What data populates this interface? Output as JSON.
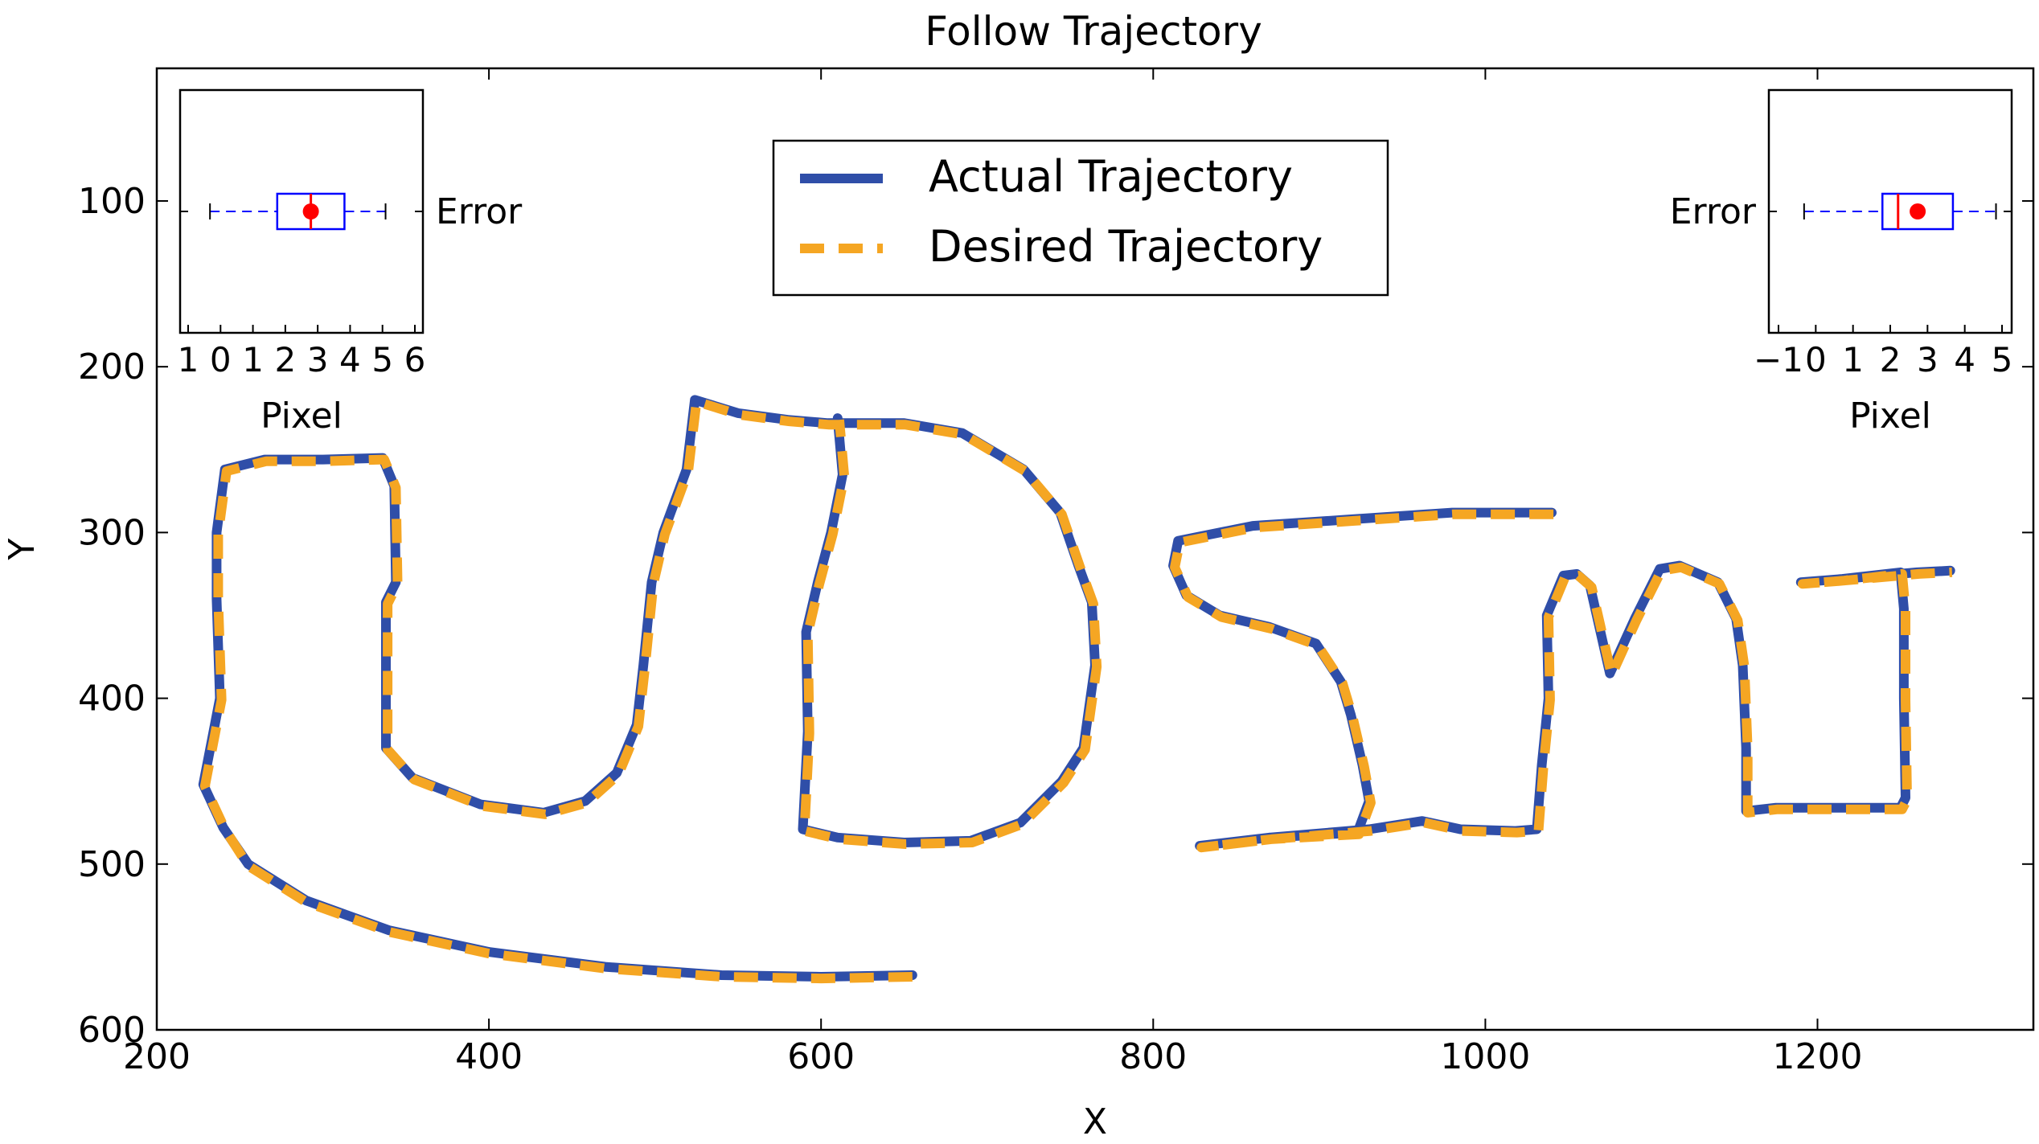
{
  "chart_data": {
    "type": "line",
    "title": "Follow Trajectory",
    "xlabel": "X",
    "ylabel": "Y",
    "xlim": [
      200,
      1330
    ],
    "ylim": [
      600,
      20
    ],
    "y_inverted": true,
    "xticks": [
      "200",
      "400",
      "600",
      "800",
      "1000",
      "1200"
    ],
    "yticks": [
      "100",
      "200",
      "300",
      "400",
      "500",
      "600"
    ],
    "legend": {
      "placement": "top-center",
      "entries": [
        "Actual Trajectory",
        "Desired Trajectory"
      ]
    },
    "series": [
      {
        "name": "Actual Trajectory",
        "color": "#2f4ea8",
        "style": "solid",
        "strokes": [
          [
            [
              655,
              567
            ],
            [
              600,
              568
            ],
            [
              540,
              567
            ],
            [
              470,
              562
            ],
            [
              400,
              553
            ],
            [
              340,
              540
            ],
            [
              290,
              522
            ],
            [
              255,
              500
            ],
            [
              240,
              478
            ],
            [
              228,
              452
            ],
            [
              238,
              400
            ],
            [
              236,
              340
            ],
            [
              236,
              300
            ],
            [
              241,
              262
            ],
            [
              265,
              256
            ],
            [
              300,
              256
            ],
            [
              336,
              255
            ],
            [
              343,
              272
            ],
            [
              344,
              330
            ],
            [
              338,
              342
            ],
            [
              338,
              430
            ],
            [
              354,
              448
            ],
            [
              395,
              464
            ],
            [
              433,
              469
            ],
            [
              458,
              462
            ],
            [
              477,
              445
            ],
            [
              489,
              416
            ],
            [
              493,
              380
            ],
            [
              498,
              330
            ],
            [
              505,
              300
            ],
            [
              519,
              262
            ],
            [
              524,
              220
            ],
            [
              550,
              228
            ],
            [
              580,
              232
            ],
            [
              604,
              234
            ],
            [
              650,
              234
            ],
            [
              685,
              240
            ],
            [
              722,
              262
            ],
            [
              744,
              288
            ],
            [
              755,
              320
            ],
            [
              763,
              342
            ],
            [
              765,
              380
            ],
            [
              758,
              430
            ],
            [
              745,
              450
            ],
            [
              720,
              475
            ],
            [
              690,
              486
            ],
            [
              650,
              487
            ],
            [
              610,
              484
            ],
            [
              589,
              479
            ],
            [
              592,
              420
            ],
            [
              591,
              360
            ],
            [
              598,
              330
            ],
            [
              606,
              300
            ],
            [
              613,
              265
            ],
            [
              610,
              231
            ]
          ],
          [
            [
              1040,
              288
            ],
            [
              980,
              288
            ],
            [
              920,
              292
            ],
            [
              860,
              296
            ],
            [
              815,
              305
            ],
            [
              812,
              320
            ],
            [
              820,
              338
            ],
            [
              840,
              350
            ],
            [
              870,
              357
            ],
            [
              898,
              367
            ],
            [
              913,
              390
            ],
            [
              919,
              410
            ],
            [
              926,
              440
            ],
            [
              930,
              462
            ],
            [
              923,
              481
            ],
            [
              870,
              484
            ],
            [
              828,
              489
            ],
            [
              870,
              484
            ],
            [
              930,
              479
            ],
            [
              962,
              474
            ],
            [
              985,
              479
            ],
            [
              1018,
              480
            ],
            [
              1031,
              479
            ],
            [
              1034,
              440
            ],
            [
              1038,
              400
            ],
            [
              1037,
              350
            ],
            [
              1047,
              326
            ],
            [
              1055,
              325
            ],
            [
              1063,
              332
            ],
            [
              1075,
              385
            ],
            [
              1090,
              352
            ],
            [
              1105,
              322
            ],
            [
              1117,
              320
            ],
            [
              1140,
              330
            ],
            [
              1151,
              352
            ],
            [
              1155,
              380
            ],
            [
              1157,
              430
            ],
            [
              1157,
              468
            ],
            [
              1175,
              466
            ],
            [
              1210,
              466
            ],
            [
              1250,
              466
            ],
            [
              1253,
              460
            ],
            [
              1252,
              400
            ],
            [
              1252,
              346
            ],
            [
              1250,
              324
            ],
            [
              1215,
              328
            ],
            [
              1190,
              330
            ],
            [
              1215,
              328
            ],
            [
              1260,
              324
            ],
            [
              1280,
              323
            ]
          ]
        ]
      },
      {
        "name": "Desired Trajectory",
        "color": "#f5a623",
        "style": "dashed",
        "strokes": [
          [
            [
              655,
              568
            ],
            [
              600,
              569
            ],
            [
              540,
              568
            ],
            [
              470,
              563
            ],
            [
              400,
              554
            ],
            [
              340,
              541
            ],
            [
              290,
              523
            ],
            [
              255,
              501
            ],
            [
              241,
              479
            ],
            [
              229,
              453
            ],
            [
              239,
              401
            ],
            [
              237,
              341
            ],
            [
              237,
              301
            ],
            [
              242,
              263
            ],
            [
              266,
              257
            ],
            [
              301,
              257
            ],
            [
              337,
              256
            ],
            [
              344,
              273
            ],
            [
              345,
              331
            ],
            [
              339,
              343
            ],
            [
              339,
              431
            ],
            [
              355,
              449
            ],
            [
              396,
              465
            ],
            [
              434,
              470
            ],
            [
              459,
              463
            ],
            [
              478,
              446
            ],
            [
              490,
              417
            ],
            [
              494,
              381
            ],
            [
              499,
              331
            ],
            [
              506,
              301
            ],
            [
              520,
              263
            ],
            [
              525,
              221
            ],
            [
              551,
              229
            ],
            [
              581,
              233
            ],
            [
              605,
              235
            ],
            [
              651,
              235
            ],
            [
              686,
              241
            ],
            [
              723,
              263
            ],
            [
              745,
              289
            ],
            [
              756,
              321
            ],
            [
              764,
              343
            ],
            [
              766,
              381
            ],
            [
              759,
              431
            ],
            [
              746,
              451
            ],
            [
              721,
              476
            ],
            [
              691,
              487
            ],
            [
              651,
              488
            ],
            [
              611,
              485
            ],
            [
              590,
              480
            ],
            [
              593,
              421
            ],
            [
              592,
              361
            ],
            [
              599,
              331
            ],
            [
              607,
              301
            ],
            [
              614,
              266
            ],
            [
              611,
              232
            ]
          ],
          [
            [
              1041,
              289
            ],
            [
              981,
              289
            ],
            [
              921,
              293
            ],
            [
              861,
              297
            ],
            [
              816,
              306
            ],
            [
              813,
              321
            ],
            [
              821,
              339
            ],
            [
              841,
              351
            ],
            [
              871,
              358
            ],
            [
              899,
              368
            ],
            [
              914,
              391
            ],
            [
              920,
              411
            ],
            [
              927,
              441
            ],
            [
              931,
              463
            ],
            [
              924,
              482
            ],
            [
              871,
              485
            ],
            [
              829,
              490
            ],
            [
              871,
              485
            ],
            [
              931,
              480
            ],
            [
              963,
              475
            ],
            [
              986,
              480
            ],
            [
              1019,
              481
            ],
            [
              1032,
              480
            ],
            [
              1035,
              441
            ],
            [
              1039,
              401
            ],
            [
              1038,
              351
            ],
            [
              1048,
              327
            ],
            [
              1056,
              326
            ],
            [
              1064,
              333
            ],
            [
              1076,
              386
            ],
            [
              1091,
              353
            ],
            [
              1106,
              323
            ],
            [
              1118,
              321
            ],
            [
              1141,
              331
            ],
            [
              1152,
              353
            ],
            [
              1156,
              381
            ],
            [
              1158,
              431
            ],
            [
              1158,
              469
            ],
            [
              1176,
              467
            ],
            [
              1211,
              467
            ],
            [
              1251,
              467
            ],
            [
              1254,
              461
            ],
            [
              1253,
              401
            ],
            [
              1253,
              347
            ],
            [
              1251,
              325
            ],
            [
              1216,
              329
            ],
            [
              1191,
              331
            ],
            [
              1216,
              329
            ],
            [
              1261,
              325
            ],
            [
              1281,
              324
            ]
          ]
        ]
      }
    ],
    "insets": [
      {
        "position": "top-left",
        "type": "boxplot",
        "label": "Error",
        "xlabel": "Pixel",
        "xlim": [
          -0.5,
          6
        ],
        "xticks": [
          "1",
          "0",
          "1",
          "2",
          "3",
          "4",
          "5",
          "6"
        ],
        "whisker_low": 0.3,
        "q1": 2.1,
        "median": 3.0,
        "q3": 3.9,
        "whisker_high": 5.0,
        "mean": 3.0,
        "box_color": "#0000ff",
        "median_color": "#ff0000",
        "mean_color": "#ff0000"
      },
      {
        "position": "top-right",
        "type": "boxplot",
        "label": "Error",
        "xlabel": "Pixel",
        "xlim": [
          -1.2,
          5
        ],
        "xticks": [
          "−1",
          "0",
          "1",
          "2",
          "3",
          "4",
          "5"
        ],
        "whisker_low": -0.3,
        "q1": 1.7,
        "median": 2.1,
        "q3": 3.5,
        "whisker_high": 4.6,
        "mean": 2.6,
        "box_color": "#0000ff",
        "median_color": "#ff0000",
        "mean_color": "#ff0000"
      }
    ]
  }
}
